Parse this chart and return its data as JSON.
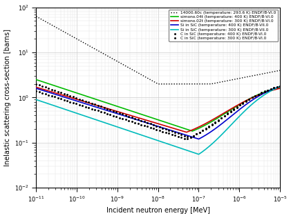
{
  "title": "",
  "xlabel": "Incident neutron energy [MeV]",
  "ylabel": "Inelastic scattering cross-section [barns]",
  "xlim": [
    1e-11,
    1e-05
  ],
  "ylim": [
    0.01,
    100
  ],
  "legend_entries": [
    {
      "label": "14000.60c (temperature: 293.6 K) ENDF/B-VI.0",
      "color": "#000000",
      "style": "dotted"
    },
    {
      "label": "simono.04t (temperature: 400 K) ENDF/B-VI.0",
      "color": "#00bb00",
      "style": "solid"
    },
    {
      "label": "simono.02t (temperature: 300 K) ENDF/B-VI.0",
      "color": "#cc0000",
      "style": "solid"
    },
    {
      "label": "Si in SiC (temperature: 400 K) ENDF/B-VII.0",
      "color": "#0000cc",
      "style": "solid"
    },
    {
      "label": "Si in SiC (temperature: 300 K) ENDF/B-VII.0",
      "color": "#00bbbb",
      "style": "solid"
    },
    {
      "label": "C in SiC (temperature: 400 K) ENDF/B-VI.0",
      "color": "#000000",
      "marker": "+"
    },
    {
      "label": "C in SiC (temperature: 300 K) ENDF/B-VI.0",
      "color": "#000000",
      "marker": "+"
    }
  ],
  "background_color": "#ffffff"
}
